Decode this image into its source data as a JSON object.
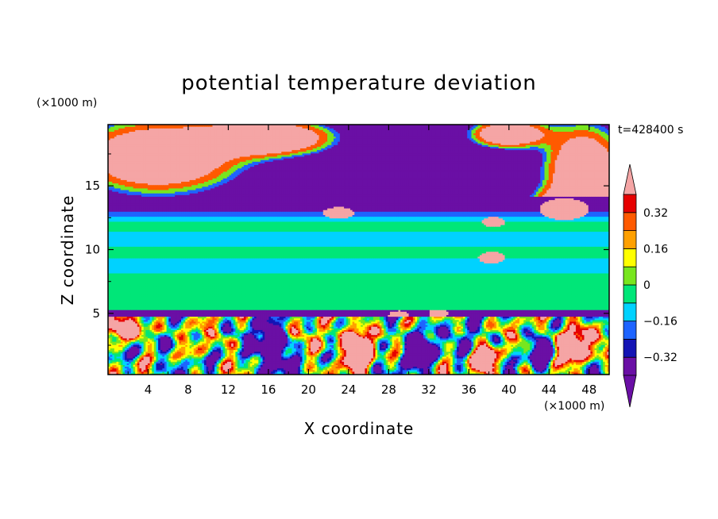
{
  "chart_data": {
    "type": "heatmap",
    "title": "potential temperature deviation",
    "xlabel": "X coordinate",
    "ylabel": "Z coordinate",
    "x_unit": "(×1000 m)",
    "y_unit": "(×1000 m)",
    "time_label": "t=428400 s",
    "xlim": [
      0,
      50
    ],
    "ylim": [
      0.2,
      19.8
    ],
    "x_ticks": [
      4,
      8,
      12,
      16,
      20,
      24,
      28,
      32,
      36,
      40,
      44,
      48
    ],
    "y_ticks": [
      5,
      10,
      15
    ],
    "colorbar": {
      "levels": [
        -0.4,
        -0.32,
        -0.24,
        -0.16,
        -0.08,
        0,
        0.08,
        0.16,
        0.24,
        0.32,
        0.4
      ],
      "tick_labels": [
        "0.32",
        "0.16",
        "0",
        "−0.16",
        "−0.32"
      ],
      "tick_values": [
        0.32,
        0.16,
        0,
        -0.16,
        -0.32
      ],
      "colors": [
        "#6a0fa5",
        "#1414b4",
        "#1e64ff",
        "#00d2ff",
        "#00e678",
        "#78e61e",
        "#ffff00",
        "#ffa000",
        "#ff5a00",
        "#e60000"
      ],
      "under_color": "#6a0fa5",
      "over_color": "#f5a5a5"
    },
    "bands": [
      {
        "z": [
          0.2,
          4.8
        ],
        "value": -0.05,
        "pattern": "turbulent boundary layer mixing purple, blue, cyan, green, yellow, red, pink"
      },
      {
        "z": [
          4.8,
          5.3
        ],
        "value": -0.36
      },
      {
        "z": [
          5.3,
          8.2
        ],
        "value": -0.04
      },
      {
        "z": [
          8.2,
          9.3
        ],
        "value": -0.12
      },
      {
        "z": [
          9.3,
          10.2
        ],
        "value": -0.04
      },
      {
        "z": [
          10.2,
          11.4
        ],
        "value": -0.12
      },
      {
        "z": [
          11.4,
          12.2
        ],
        "value": -0.04
      },
      {
        "z": [
          12.2,
          12.6
        ],
        "value": -0.12
      },
      {
        "z": [
          12.6,
          13.0
        ],
        "value": -0.2
      },
      {
        "z": [
          13.0,
          14.2
        ],
        "value": -0.36
      },
      {
        "z": [
          14.2,
          19.8
        ],
        "value": -0.5,
        "pattern": "upper layer dominated by purple with pink (>0.4) patches on left and right"
      }
    ]
  }
}
